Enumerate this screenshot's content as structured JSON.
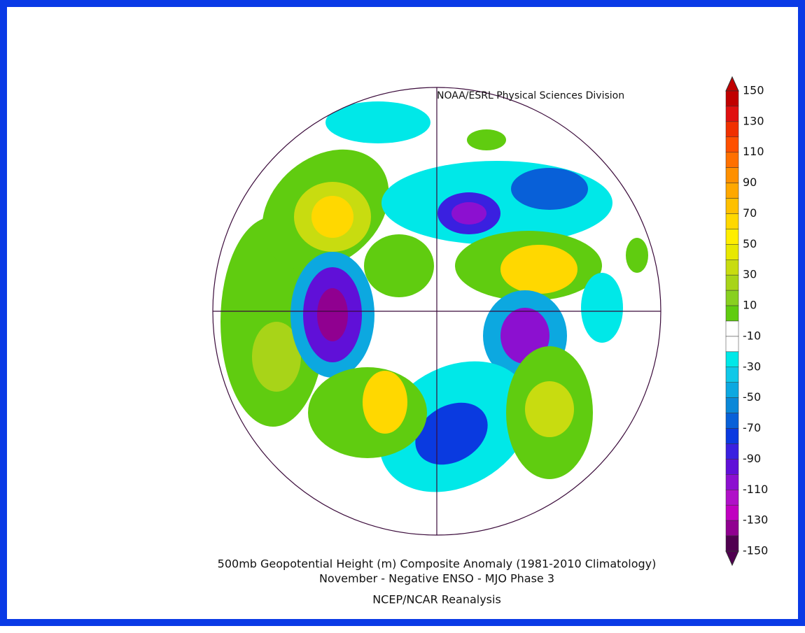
{
  "header": {
    "credit": "NOAA/ESRL Physical Sciences Division"
  },
  "caption": {
    "line1": "500mb Geopotential Height (m) Composite Anomaly (1981-2010 Climatology)",
    "line2": "November - Negative ENSO - MJO Phase 3",
    "source": "NCEP/NCAR Reanalysis"
  },
  "colorbar": {
    "labels": [
      150,
      130,
      110,
      90,
      70,
      50,
      30,
      10,
      -10,
      -30,
      -50,
      -70,
      -90,
      -110,
      -130,
      -150
    ],
    "colors": [
      "#c00000",
      "#e01010",
      "#f03000",
      "#ff5000",
      "#ff7000",
      "#ff9000",
      "#ffa800",
      "#ffc000",
      "#ffd800",
      "#ffee00",
      "#e8e800",
      "#c8dc10",
      "#a8d418",
      "#88d020",
      "#60cc10",
      "#ffffff",
      "#ffffff",
      "#00e8e8",
      "#10c8e8",
      "#0ca8e0",
      "#0a88d8",
      "#0860d8",
      "#0a3ae0",
      "#3a20e0",
      "#6010d8",
      "#8c10d0",
      "#b010c8",
      "#c000c0",
      "#900090",
      "#500050"
    ]
  }
}
